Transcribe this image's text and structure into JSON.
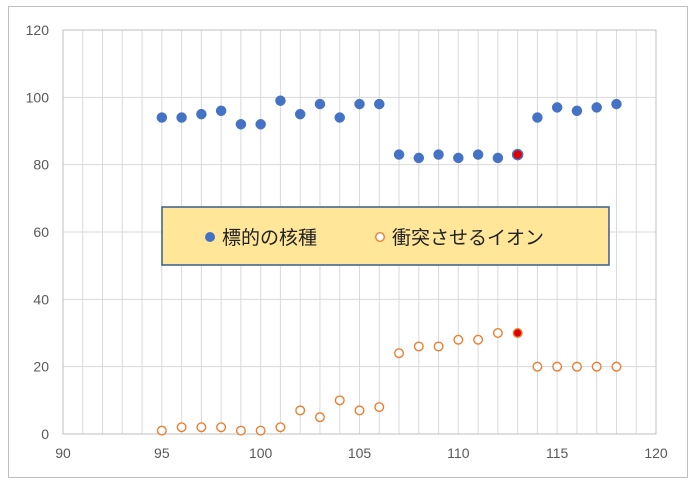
{
  "chart_data": {
    "type": "scatter",
    "title": "",
    "xlabel": "",
    "ylabel": "",
    "xlim": [
      90,
      120
    ],
    "ylim": [
      0,
      120
    ],
    "x_ticks": [
      90,
      95,
      100,
      105,
      110,
      115,
      120
    ],
    "y_ticks": [
      0,
      20,
      40,
      60,
      80,
      100,
      120
    ],
    "x_minor_step": 1,
    "grid": true,
    "legend_position": "center",
    "colors": {
      "target": "#4472C4",
      "projectile": "#ED7D31",
      "highlight": "#E00000",
      "legend_bg": "#FFE699",
      "legend_border": "#3B5C91",
      "grid": "#d9d9d9"
    },
    "series": [
      {
        "name": "標的の核種",
        "marker": "filled-circle",
        "points": [
          {
            "x": 95,
            "y": 94
          },
          {
            "x": 96,
            "y": 94
          },
          {
            "x": 97,
            "y": 95
          },
          {
            "x": 98,
            "y": 96
          },
          {
            "x": 99,
            "y": 92
          },
          {
            "x": 100,
            "y": 92
          },
          {
            "x": 101,
            "y": 99
          },
          {
            "x": 102,
            "y": 95
          },
          {
            "x": 103,
            "y": 98
          },
          {
            "x": 104,
            "y": 94
          },
          {
            "x": 105,
            "y": 98
          },
          {
            "x": 106,
            "y": 98
          },
          {
            "x": 107,
            "y": 83
          },
          {
            "x": 108,
            "y": 82
          },
          {
            "x": 109,
            "y": 83
          },
          {
            "x": 110,
            "y": 82
          },
          {
            "x": 111,
            "y": 83
          },
          {
            "x": 112,
            "y": 82
          },
          {
            "x": 113,
            "y": 83,
            "highlight": true
          },
          {
            "x": 114,
            "y": 94
          },
          {
            "x": 115,
            "y": 97
          },
          {
            "x": 116,
            "y": 96
          },
          {
            "x": 117,
            "y": 97
          },
          {
            "x": 118,
            "y": 98
          }
        ]
      },
      {
        "name": "衝突させるイオン",
        "marker": "open-circle",
        "points": [
          {
            "x": 95,
            "y": 1
          },
          {
            "x": 96,
            "y": 2
          },
          {
            "x": 97,
            "y": 2
          },
          {
            "x": 98,
            "y": 2
          },
          {
            "x": 99,
            "y": 1
          },
          {
            "x": 100,
            "y": 1
          },
          {
            "x": 101,
            "y": 2
          },
          {
            "x": 102,
            "y": 7
          },
          {
            "x": 103,
            "y": 5
          },
          {
            "x": 104,
            "y": 10
          },
          {
            "x": 105,
            "y": 7
          },
          {
            "x": 106,
            "y": 8
          },
          {
            "x": 107,
            "y": 24
          },
          {
            "x": 108,
            "y": 26
          },
          {
            "x": 109,
            "y": 26
          },
          {
            "x": 110,
            "y": 28
          },
          {
            "x": 111,
            "y": 28
          },
          {
            "x": 112,
            "y": 30
          },
          {
            "x": 113,
            "y": 30,
            "highlight": true
          },
          {
            "x": 114,
            "y": 20
          },
          {
            "x": 115,
            "y": 20
          },
          {
            "x": 116,
            "y": 20
          },
          {
            "x": 117,
            "y": 20
          },
          {
            "x": 118,
            "y": 20
          }
        ]
      }
    ]
  }
}
